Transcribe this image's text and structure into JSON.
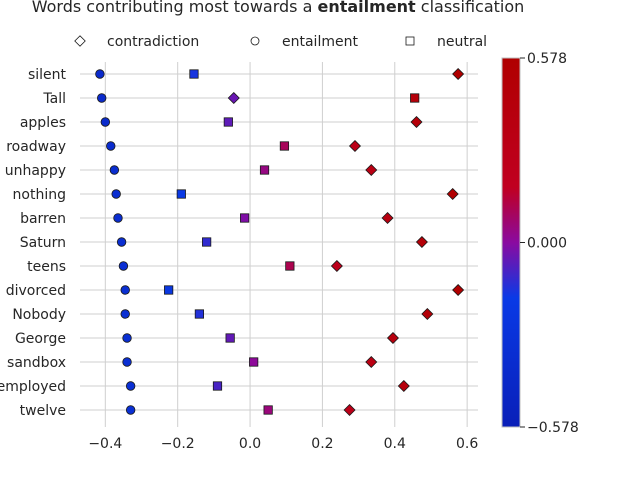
{
  "chart_data": {
    "type": "scatter",
    "title": {
      "prefix": "Words contributing most towards a ",
      "bold": "entailment",
      "suffix": " classification"
    },
    "xlabel": "",
    "ylabel": "",
    "xlim": [
      -0.47,
      0.63
    ],
    "xticks": [
      -0.4,
      -0.2,
      0.0,
      0.2,
      0.4,
      0.6
    ],
    "xtick_labels": [
      "−0.4",
      "−0.2",
      "0.0",
      "0.2",
      "0.4",
      "0.6"
    ],
    "grid": true,
    "legend_position": "top",
    "categories": [
      "silent",
      "Tall",
      "apples",
      "roadway",
      "unhappy",
      "nothing",
      "barren",
      "Saturn",
      "teens",
      "divorced",
      "Nobody",
      "George",
      "sandbox",
      "employed",
      "twelve"
    ],
    "series": [
      {
        "name": "contradiction",
        "marker": "diamond",
        "values": [
          0.575,
          -0.045,
          0.46,
          0.29,
          0.335,
          0.56,
          0.38,
          0.475,
          0.24,
          0.575,
          0.49,
          0.395,
          0.335,
          0.425,
          0.275
        ]
      },
      {
        "name": "entailment",
        "marker": "circle",
        "values": [
          -0.415,
          -0.41,
          -0.4,
          -0.385,
          -0.375,
          -0.37,
          -0.365,
          -0.355,
          -0.35,
          -0.345,
          -0.345,
          -0.34,
          -0.34,
          -0.33,
          -0.33
        ]
      },
      {
        "name": "neutral",
        "marker": "square",
        "values": [
          -0.155,
          0.455,
          -0.06,
          0.095,
          0.04,
          -0.19,
          -0.015,
          -0.12,
          0.11,
          -0.225,
          -0.14,
          -0.055,
          0.01,
          -0.09,
          0.05
        ]
      }
    ],
    "colorbar": {
      "min": -0.578,
      "max": 0.578,
      "tick_labels": [
        "0.578",
        "0.000",
        "−0.578"
      ],
      "colors": {
        "low": "#0a1fb8",
        "low_mid": "#0a3ae6",
        "mid": "#8a0aa0",
        "high_mid": "#c00020",
        "high": "#b00000"
      }
    }
  }
}
